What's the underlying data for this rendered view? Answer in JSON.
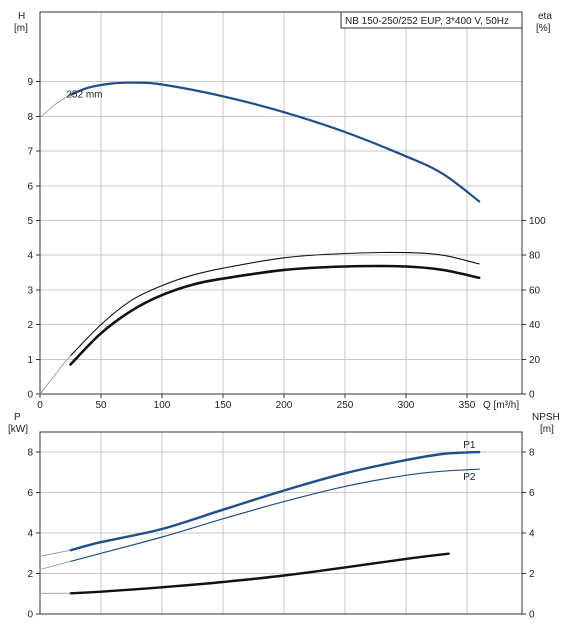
{
  "title_box": "NB 150-250/252 EUP, 3*400 V, 50Hz",
  "top_chart": {
    "y_left_label": [
      "H",
      "[m]"
    ],
    "y_right_label": [
      "eta",
      "[%]"
    ],
    "x_label": "Q [m³/h]"
  },
  "bottom_chart": {
    "y_left_label": [
      "P",
      "[kW]"
    ],
    "y_right_label": [
      "NPSH",
      "[m]"
    ]
  },
  "colors": {
    "head": "#1f4e8c",
    "power": "#1f4e8c",
    "npsh": "#111111",
    "eta": "#111111",
    "thin": "#9a9a9a",
    "grid": "#c8c8c8"
  },
  "chart_data": [
    {
      "type": "line",
      "title": "NB 150-250/252 EUP, 3*400 V, 50Hz",
      "xlabel": "Q [m³/h]",
      "ylabel": "H [m]",
      "y2label": "eta [%]",
      "xlim": [
        0,
        360
      ],
      "ylim": [
        0,
        10
      ],
      "y2lim": [
        0,
        120
      ],
      "xticks": [
        0,
        50,
        100,
        150,
        200,
        250,
        300,
        350
      ],
      "yticks": [
        0,
        1,
        2,
        3,
        4,
        5,
        6,
        7,
        8,
        9
      ],
      "y2ticks": [
        0,
        20,
        40,
        60,
        80,
        100
      ],
      "grid": true,
      "annotations": [
        {
          "text": "252 mm",
          "x": 38,
          "y": 8.6
        }
      ],
      "series": [
        {
          "axis": "left",
          "style": "head",
          "x": [
            25,
            40,
            60,
            80,
            100,
            150,
            200,
            250,
            300,
            330,
            360
          ],
          "y": [
            8.62,
            8.83,
            8.95,
            8.97,
            8.92,
            8.58,
            8.12,
            7.55,
            6.85,
            6.35,
            5.55
          ]
        },
        {
          "axis": "left",
          "style": "thin",
          "x": [
            0,
            5,
            10,
            15,
            20,
            25
          ],
          "y": [
            7.95,
            8.12,
            8.28,
            8.41,
            8.52,
            8.62
          ]
        },
        {
          "axis": "right",
          "style": "eta_thin",
          "x": [
            25,
            50,
            75,
            100,
            125,
            150,
            200,
            250,
            300,
            330,
            360
          ],
          "y": [
            22,
            40,
            54,
            62.5,
            68.5,
            72.5,
            78.5,
            81,
            81.5,
            80,
            75
          ]
        },
        {
          "axis": "right",
          "style": "eta_thick",
          "x": [
            25,
            50,
            75,
            100,
            125,
            150,
            200,
            250,
            300,
            330,
            360
          ],
          "y": [
            17,
            35,
            48,
            57,
            63,
            66.5,
            71.5,
            73.5,
            73.5,
            71.5,
            67
          ]
        },
        {
          "axis": "right",
          "style": "thin",
          "x": [
            0,
            5,
            10,
            15,
            20,
            25
          ],
          "y": [
            0,
            4.5,
            9,
            13.5,
            18,
            22
          ]
        }
      ]
    },
    {
      "type": "line",
      "ylabel": "P [kW]",
      "y2label": "NPSH [m]",
      "xlim": [
        0,
        360
      ],
      "ylim": [
        0,
        9
      ],
      "y2lim": [
        0,
        9
      ],
      "yticks": [
        0,
        2,
        4,
        6,
        8
      ],
      "y2ticks": [
        0,
        2,
        4,
        6,
        8
      ],
      "grid": true,
      "series": [
        {
          "name": "P1",
          "axis": "left",
          "style": "power_thick",
          "x": [
            25,
            50,
            100,
            150,
            200,
            250,
            300,
            330,
            360
          ],
          "y": [
            3.15,
            3.55,
            4.2,
            5.15,
            6.1,
            6.95,
            7.6,
            7.9,
            8.0
          ]
        },
        {
          "name": "P2",
          "axis": "left",
          "style": "power_thin",
          "x": [
            25,
            50,
            100,
            150,
            200,
            250,
            300,
            330,
            360
          ],
          "y": [
            2.6,
            3.0,
            3.8,
            4.7,
            5.55,
            6.3,
            6.85,
            7.05,
            7.15
          ]
        },
        {
          "axis": "left",
          "style": "thin",
          "x": [
            0,
            25
          ],
          "y": [
            2.85,
            3.15
          ]
        },
        {
          "axis": "left",
          "style": "thin",
          "x": [
            0,
            25
          ],
          "y": [
            2.2,
            2.6
          ]
        },
        {
          "axis": "right",
          "style": "npsh",
          "x": [
            25,
            50,
            100,
            150,
            200,
            250,
            300,
            335
          ],
          "y": [
            1.02,
            1.1,
            1.32,
            1.58,
            1.9,
            2.3,
            2.72,
            2.98
          ]
        },
        {
          "axis": "right",
          "style": "thin",
          "x": [
            0,
            25
          ],
          "y": [
            1.02,
            1.02
          ]
        }
      ]
    }
  ]
}
